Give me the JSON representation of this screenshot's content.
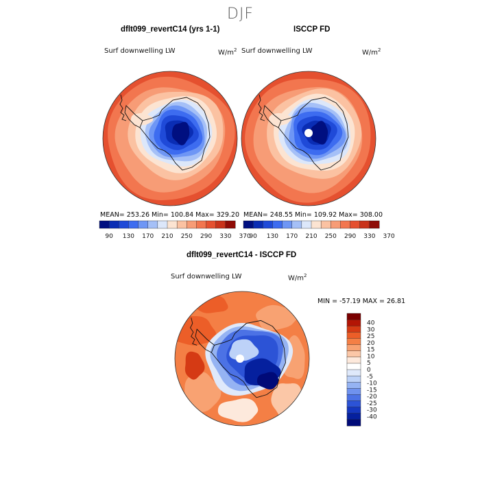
{
  "figure_title": "DJF",
  "panels": [
    {
      "title": "dflt099_revertC14 (yrs 1-1)",
      "variable": "Surf downwelling LW",
      "units_base": "W/m",
      "units_exp": "2",
      "stats": "MEAN= 253.26   Min= 100.84   Max= 329.20"
    },
    {
      "title": "ISCCP FD",
      "variable": "Surf downwelling LW",
      "units_base": "W/m",
      "units_exp": "2",
      "stats": "MEAN= 248.55   Min= 109.92   Max= 308.00"
    },
    {
      "title": "dflt099_revertC14 - ISCCP FD",
      "variable": "Surf downwelling LW",
      "units_base": "W/m",
      "units_exp": "2",
      "stats": "MIN = -57.19 MAX =  26.81"
    }
  ],
  "chart_data": [
    {
      "type": "heatmap",
      "title": "dflt099_revertC14 (yrs 1-1)",
      "projection": "south polar stereographic",
      "mean": 253.26,
      "min": 100.84,
      "max": 329.2,
      "colorbar_ticks": [
        "90",
        "130",
        "170",
        "210",
        "250",
        "290",
        "330",
        "370"
      ],
      "colorbar_colors": [
        "#000f80",
        "#0a2db4",
        "#1f4ad8",
        "#3d6cf0",
        "#6e96f5",
        "#a5c0f7",
        "#dce7fa",
        "#fce4d2",
        "#fbc2a2",
        "#f79c76",
        "#f2764f",
        "#e5502f",
        "#c9321a",
        "#8f0b06"
      ]
    },
    {
      "type": "heatmap",
      "title": "ISCCP FD",
      "projection": "south polar stereographic",
      "mean": 248.55,
      "min": 109.92,
      "max": 308.0,
      "colorbar_ticks": [
        "90",
        "130",
        "170",
        "210",
        "250",
        "290",
        "330",
        "370"
      ],
      "colorbar_colors": [
        "#000f80",
        "#0a2db4",
        "#1f4ad8",
        "#3d6cf0",
        "#6e96f5",
        "#a5c0f7",
        "#dce7fa",
        "#fce4d2",
        "#fbc2a2",
        "#f79c76",
        "#f2764f",
        "#e5502f",
        "#c9321a",
        "#8f0b06"
      ]
    },
    {
      "type": "heatmap",
      "title": "dflt099_revertC14 - ISCCP FD",
      "projection": "south polar stereographic",
      "min": -57.19,
      "max": 26.81,
      "colorbar_ticks": [
        "40",
        "30",
        "25",
        "20",
        "15",
        "10",
        "5",
        "0",
        "-5",
        "-10",
        "-15",
        "-20",
        "-25",
        "-30",
        "-40"
      ],
      "colorbar_colors": [
        "#7a0000",
        "#b31505",
        "#d53a14",
        "#ec5e28",
        "#f47f45",
        "#f8a272",
        "#fbc7a7",
        "#fde9dc",
        "#ffffff",
        "#dfe9fb",
        "#bdd2f8",
        "#95b3f3",
        "#6f92ee",
        "#4c72e5",
        "#2c53d6",
        "#1537bf",
        "#05209e",
        "#000a78"
      ]
    }
  ]
}
